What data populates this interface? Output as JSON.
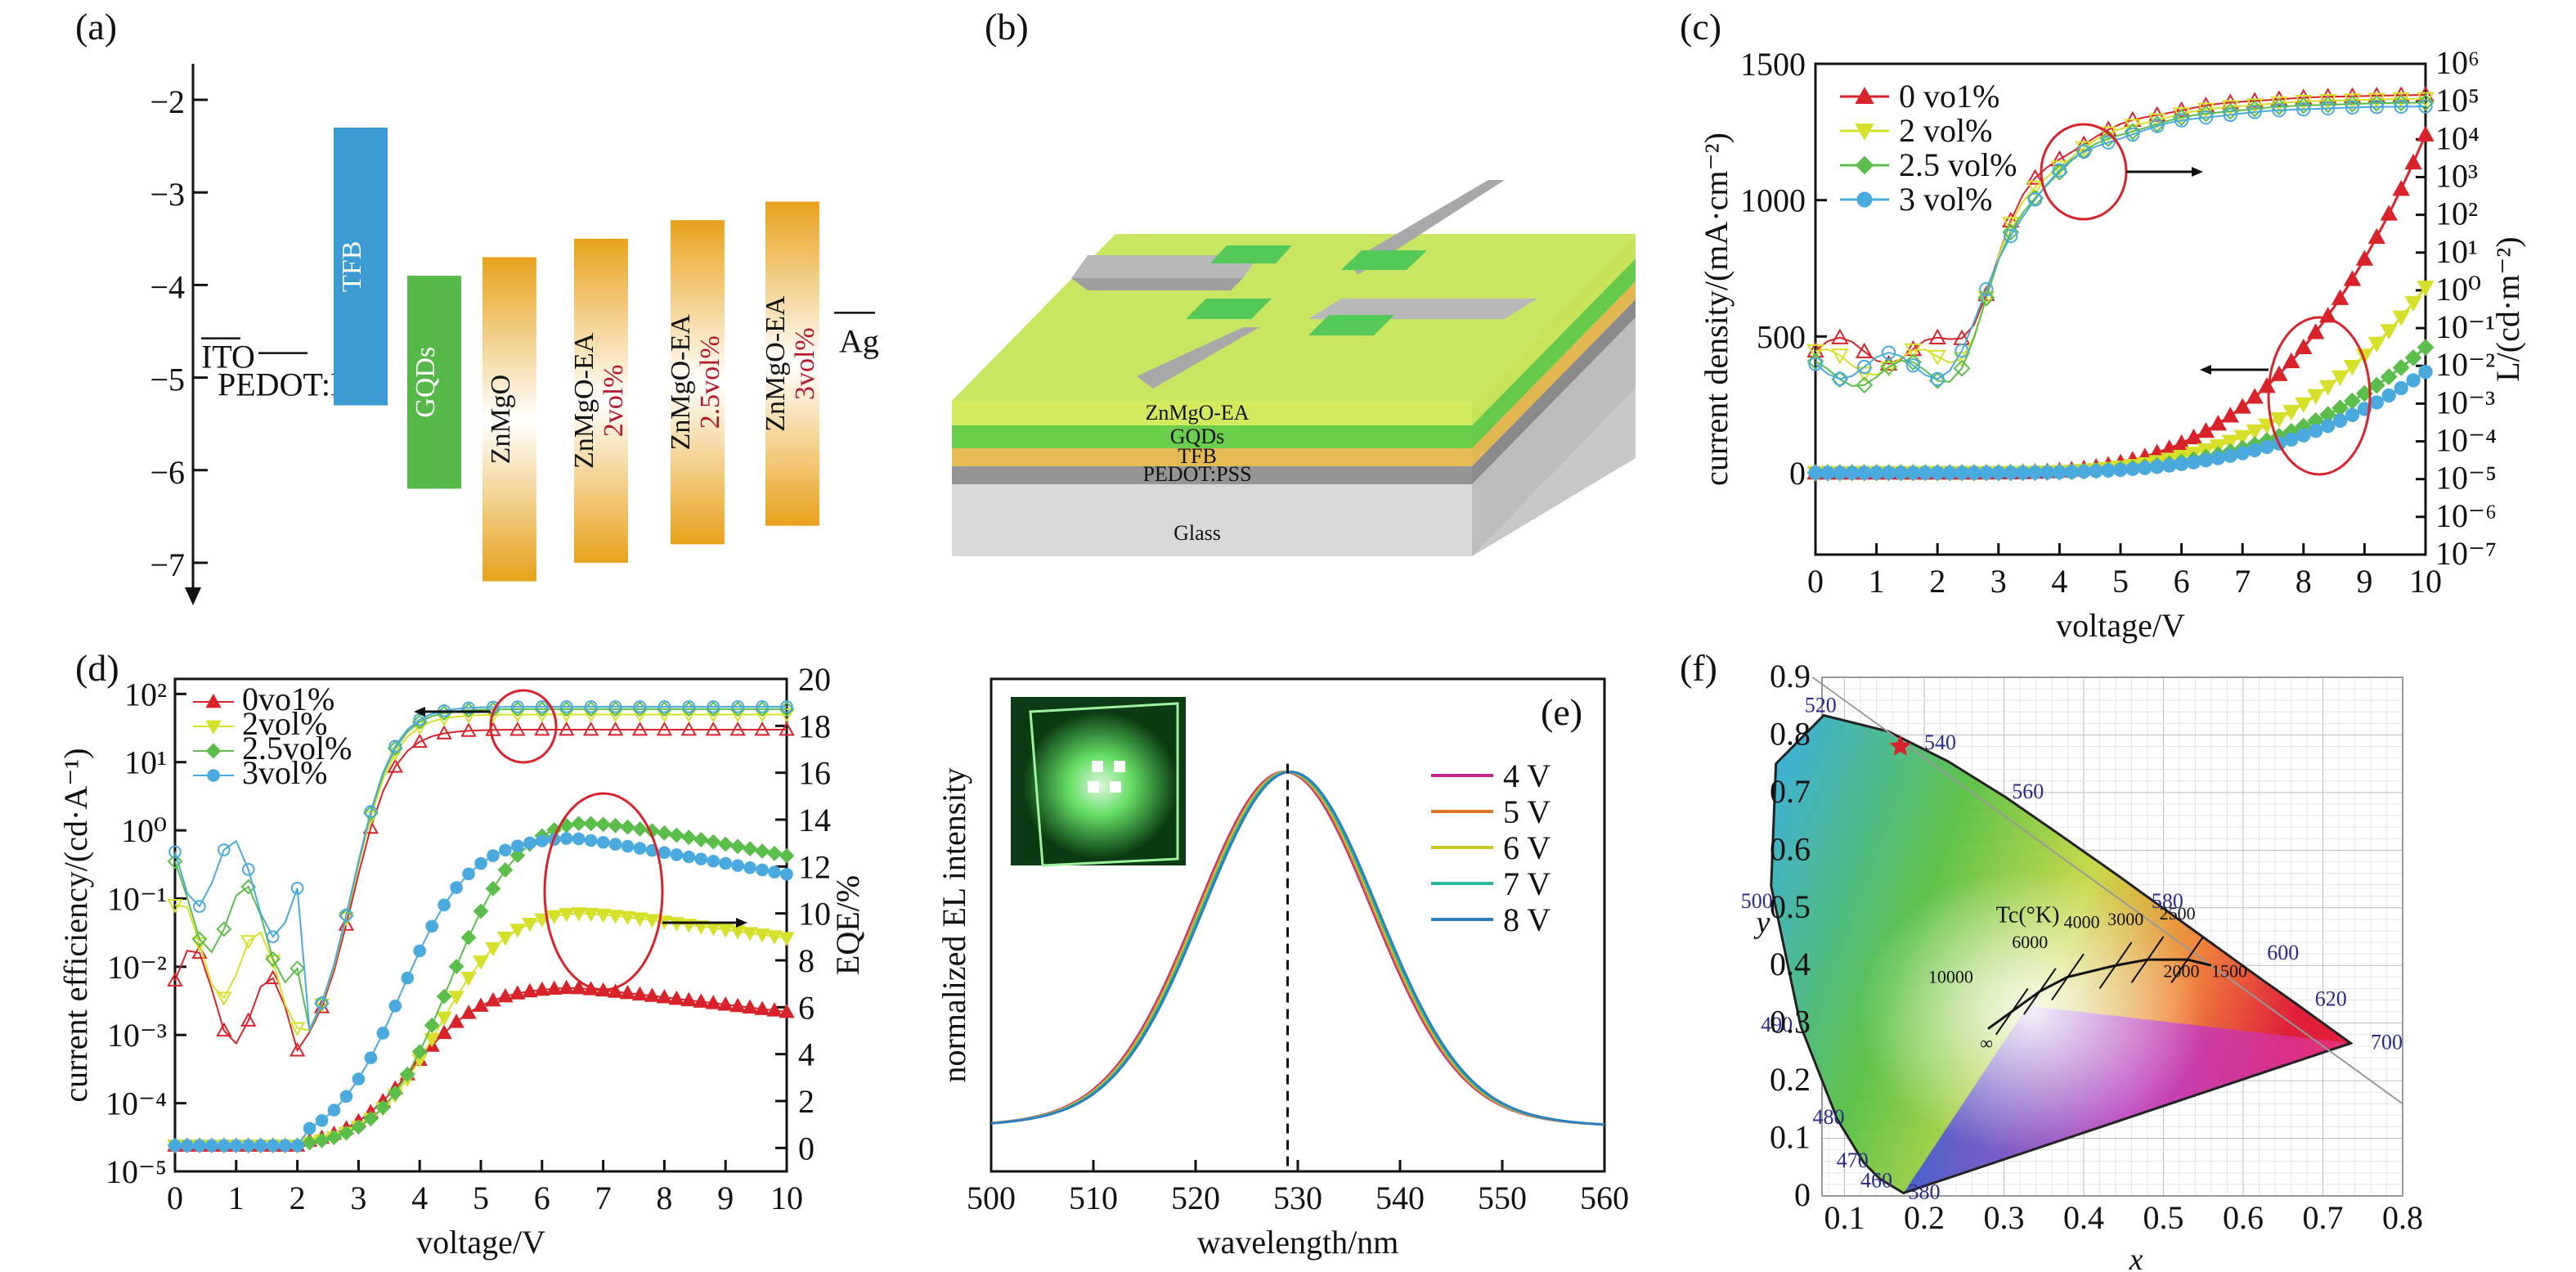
{
  "panels": {
    "a": "(a)",
    "b": "(b)",
    "c": "(c)",
    "d": "(d)",
    "e": "(e)",
    "f": "(f)"
  },
  "chart_data": [
    {
      "id": "a",
      "type": "diagram",
      "y_ticks": [
        "-2",
        "-3",
        "-4",
        "-5",
        "-6",
        "-7"
      ],
      "levels": [
        {
          "label": "ITO",
          "value": -4.7
        },
        {
          "label": "PEDOT:PSS",
          "value": -5.0
        },
        {
          "label": "Ag",
          "value": -4.3
        }
      ],
      "bars": [
        {
          "label": "TFB",
          "top": -2.3,
          "bottom": -5.3,
          "color": "#3d9bd3"
        },
        {
          "label": "GQDs",
          "top": -3.9,
          "bottom": -6.2,
          "color": "#55b848"
        },
        {
          "label": "ZnMgO",
          "top": -3.7,
          "bottom": -7.2,
          "color": "gradient-orange"
        },
        {
          "label": "ZnMgO-EA",
          "sub": "2vol%",
          "top": -3.5,
          "bottom": -7.0,
          "color": "gradient-orange"
        },
        {
          "label": "ZnMgO-EA",
          "sub": "2.5vol%",
          "top": -3.3,
          "bottom": -6.8,
          "color": "gradient-orange"
        },
        {
          "label": "ZnMgO-EA",
          "sub": "3vol%",
          "top": -3.1,
          "bottom": -6.6,
          "color": "gradient-orange"
        }
      ]
    },
    {
      "id": "b",
      "type": "diagram",
      "layers": [
        "ZnMgO-EA",
        "GQDs",
        "TFB",
        "PEDOT:PSS",
        "Glass"
      ]
    },
    {
      "id": "c",
      "type": "line",
      "xlabel": "voltage/V",
      "ylabel": "current density/(mA·cm⁻²)",
      "y2label": "L/(cd·m⁻²)",
      "xlim": [
        0,
        10
      ],
      "ylim": [
        -300,
        1500
      ],
      "y2lim_exp": [
        -7,
        6
      ],
      "x_ticks": [
        "0",
        "1",
        "2",
        "3",
        "4",
        "5",
        "6",
        "7",
        "8",
        "9",
        "10"
      ],
      "y_ticks": [
        "0",
        "500",
        "1000",
        "1500"
      ],
      "y2_ticks": [
        "10⁻⁷",
        "10⁻⁶",
        "10⁻⁵",
        "10⁻⁴",
        "10⁻³",
        "10⁻²",
        "10⁻¹",
        "10⁰",
        "10¹",
        "10²",
        "10³",
        "10⁴",
        "10⁵",
        "10⁶"
      ],
      "legend": [
        "0 vo1%",
        "2 vol%",
        "2.5 vol%",
        "3 vol%"
      ],
      "colors": [
        "#d8232a",
        "#d6e02a",
        "#5bbd4a",
        "#4aa9dd"
      ],
      "current_end": [
        1240,
        680,
        460,
        370
      ],
      "luminance_plateau_exp": [
        5.2,
        5.1,
        5.0,
        4.9
      ]
    },
    {
      "id": "d",
      "type": "line",
      "xlabel": "voltage/V",
      "ylabel": "current efficiency/(cd·A⁻¹)",
      "y2label": "EQE/%",
      "xlim": [
        0,
        10
      ],
      "y_exp_lim": [
        -5,
        2
      ],
      "y2lim": [
        -1,
        20
      ],
      "x_ticks": [
        "0",
        "1",
        "2",
        "3",
        "4",
        "5",
        "6",
        "7",
        "8",
        "9",
        "10"
      ],
      "y_ticks": [
        "10⁻⁵",
        "10⁻⁴",
        "10⁻³",
        "10⁻²",
        "10⁻¹",
        "10⁰",
        "10¹",
        "10²"
      ],
      "y2_ticks": [
        "0",
        "2",
        "4",
        "6",
        "8",
        "10",
        "12",
        "14",
        "16",
        "18",
        "20"
      ],
      "legend": [
        "0vo1%",
        "2vol%",
        "2.5vol%",
        "3vol%"
      ],
      "colors": [
        "#d8232a",
        "#d6e02a",
        "#5bbd4a",
        "#4aa9dd"
      ],
      "ce_peak": [
        30,
        50,
        60,
        65
      ],
      "eqe_peak": [
        6.9,
        10.2,
        14.2,
        13.3
      ]
    },
    {
      "id": "e",
      "type": "line",
      "xlabel": "wavelength/nm",
      "ylabel": "normalized EL intensity",
      "xlim": [
        500,
        560
      ],
      "x_ticks": [
        "500",
        "510",
        "520",
        "530",
        "540",
        "550",
        "560"
      ],
      "peak_nm": 529,
      "fwhm_nm": 20,
      "legend": [
        "4 V",
        "5 V",
        "6 V",
        "7 V",
        "8 V"
      ],
      "colors": [
        "#c0288a",
        "#e0752a",
        "#c6c828",
        "#2bb79a",
        "#2e7fbf"
      ]
    },
    {
      "id": "f",
      "type": "scatter",
      "xlabel": "x",
      "ylabel": "y",
      "xlim": [
        0,
        0.8
      ],
      "ylim": [
        0,
        0.9
      ],
      "x_ticks": [
        "0.1",
        "0.2",
        "0.3",
        "0.4",
        "0.5",
        "0.6",
        "0.7",
        "0.8"
      ],
      "y_ticks": [
        "0",
        "0.1",
        "0.2",
        "0.3",
        "0.4",
        "0.5",
        "0.6",
        "0.7",
        "0.8",
        "0.9"
      ],
      "wavelengths": [
        "380",
        "460",
        "470",
        "480",
        "490",
        "500",
        "520",
        "540",
        "560",
        "580",
        "600",
        "620",
        "700"
      ],
      "planck_title": "Tc(°K)",
      "planck_temps": [
        "10000",
        "6000",
        "4000",
        "3000",
        "2500",
        "2000",
        "1500",
        "∞"
      ],
      "point": {
        "x": 0.17,
        "y": 0.78
      }
    }
  ]
}
